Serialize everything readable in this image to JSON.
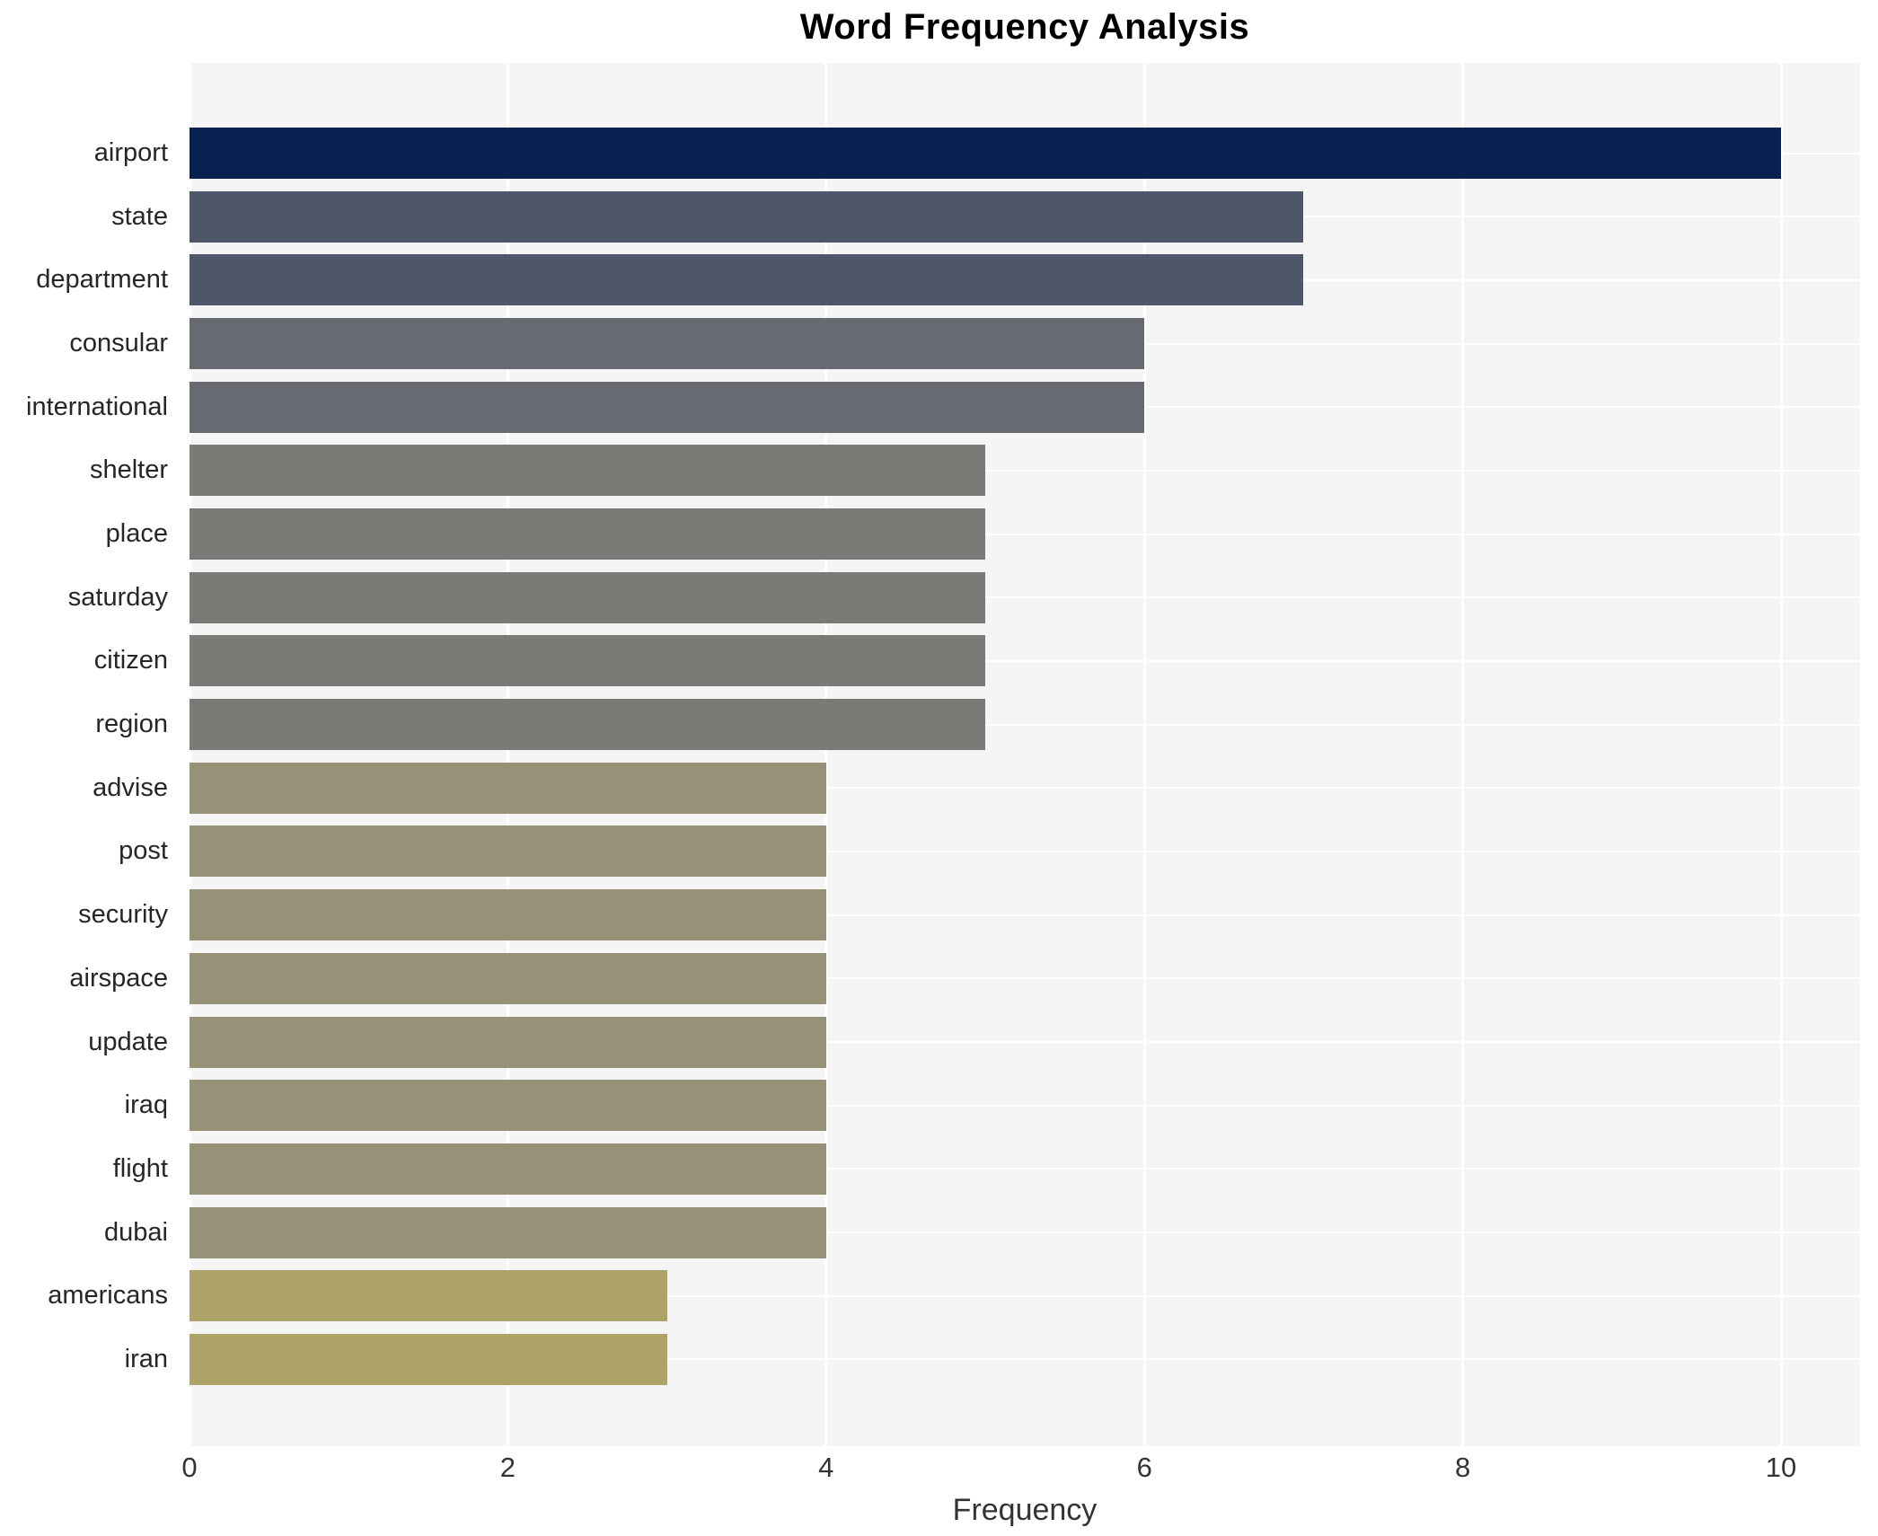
{
  "chart_data": {
    "type": "bar",
    "orientation": "horizontal",
    "title": "Word Frequency Analysis",
    "xlabel": "Frequency",
    "ylabel": "",
    "categories": [
      "airport",
      "state",
      "department",
      "consular",
      "international",
      "shelter",
      "place",
      "saturday",
      "citizen",
      "region",
      "advise",
      "post",
      "security",
      "airspace",
      "update",
      "iraq",
      "flight",
      "dubai",
      "americans",
      "iran"
    ],
    "values": [
      10,
      7,
      7,
      6,
      6,
      5,
      5,
      5,
      5,
      5,
      4,
      4,
      4,
      4,
      4,
      4,
      4,
      4,
      3,
      3
    ],
    "bar_colors": [
      "#082150",
      "#4e5669",
      "#4e5669",
      "#686a71",
      "#686a71",
      "#7b7a77",
      "#7b7a77",
      "#7b7a77",
      "#7b7a77",
      "#7b7a77",
      "#979177",
      "#979177",
      "#979177",
      "#979177",
      "#979177",
      "#979177",
      "#979177",
      "#979177",
      "#ada267",
      "#ada267"
    ],
    "xlim": [
      0,
      10.5
    ],
    "xticks": [
      "0",
      "2",
      "4",
      "6",
      "8",
      "10"
    ],
    "xtick_values": [
      0,
      2,
      4,
      6,
      8,
      10
    ],
    "grid": true,
    "legend": false,
    "panel_bg": "#f5f5f5",
    "grid_color": "#ffffff",
    "text_color": "#262626"
  }
}
